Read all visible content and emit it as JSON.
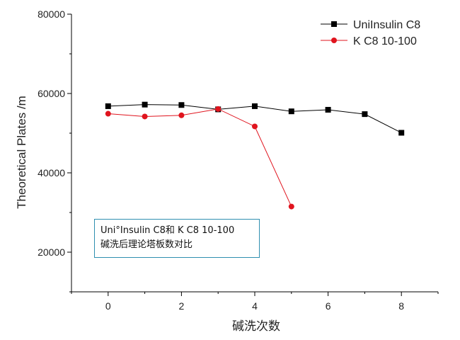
{
  "chart_data": {
    "type": "line",
    "title": "",
    "xlabel": "碱洗次数",
    "ylabel": "Theoretical Plates /m",
    "xlim": [
      -1,
      9
    ],
    "ylim": [
      10000,
      80000
    ],
    "x_ticks": [
      0,
      2,
      4,
      6,
      8
    ],
    "y_ticks": [
      20000,
      40000,
      60000,
      80000
    ],
    "grid": false,
    "legend_position": "top-right",
    "series": [
      {
        "name": "UniInsulin C8",
        "color": "#000000",
        "marker": "square",
        "x": [
          0,
          1,
          2,
          3,
          4,
          5,
          6,
          7,
          8
        ],
        "y": [
          56800,
          57200,
          57100,
          56000,
          56800,
          55500,
          55900,
          54800,
          50100
        ]
      },
      {
        "name": "K C8 10-100",
        "color": "#e0141e",
        "marker": "circle",
        "x": [
          0,
          1,
          2,
          3,
          4,
          5
        ],
        "y": [
          54900,
          54200,
          54500,
          56100,
          51700,
          31500
        ]
      }
    ],
    "annotation": {
      "line1": "Uni°Insulin C8和 K C8 10-100",
      "line2": "碱洗后理论塔板数对比"
    }
  }
}
